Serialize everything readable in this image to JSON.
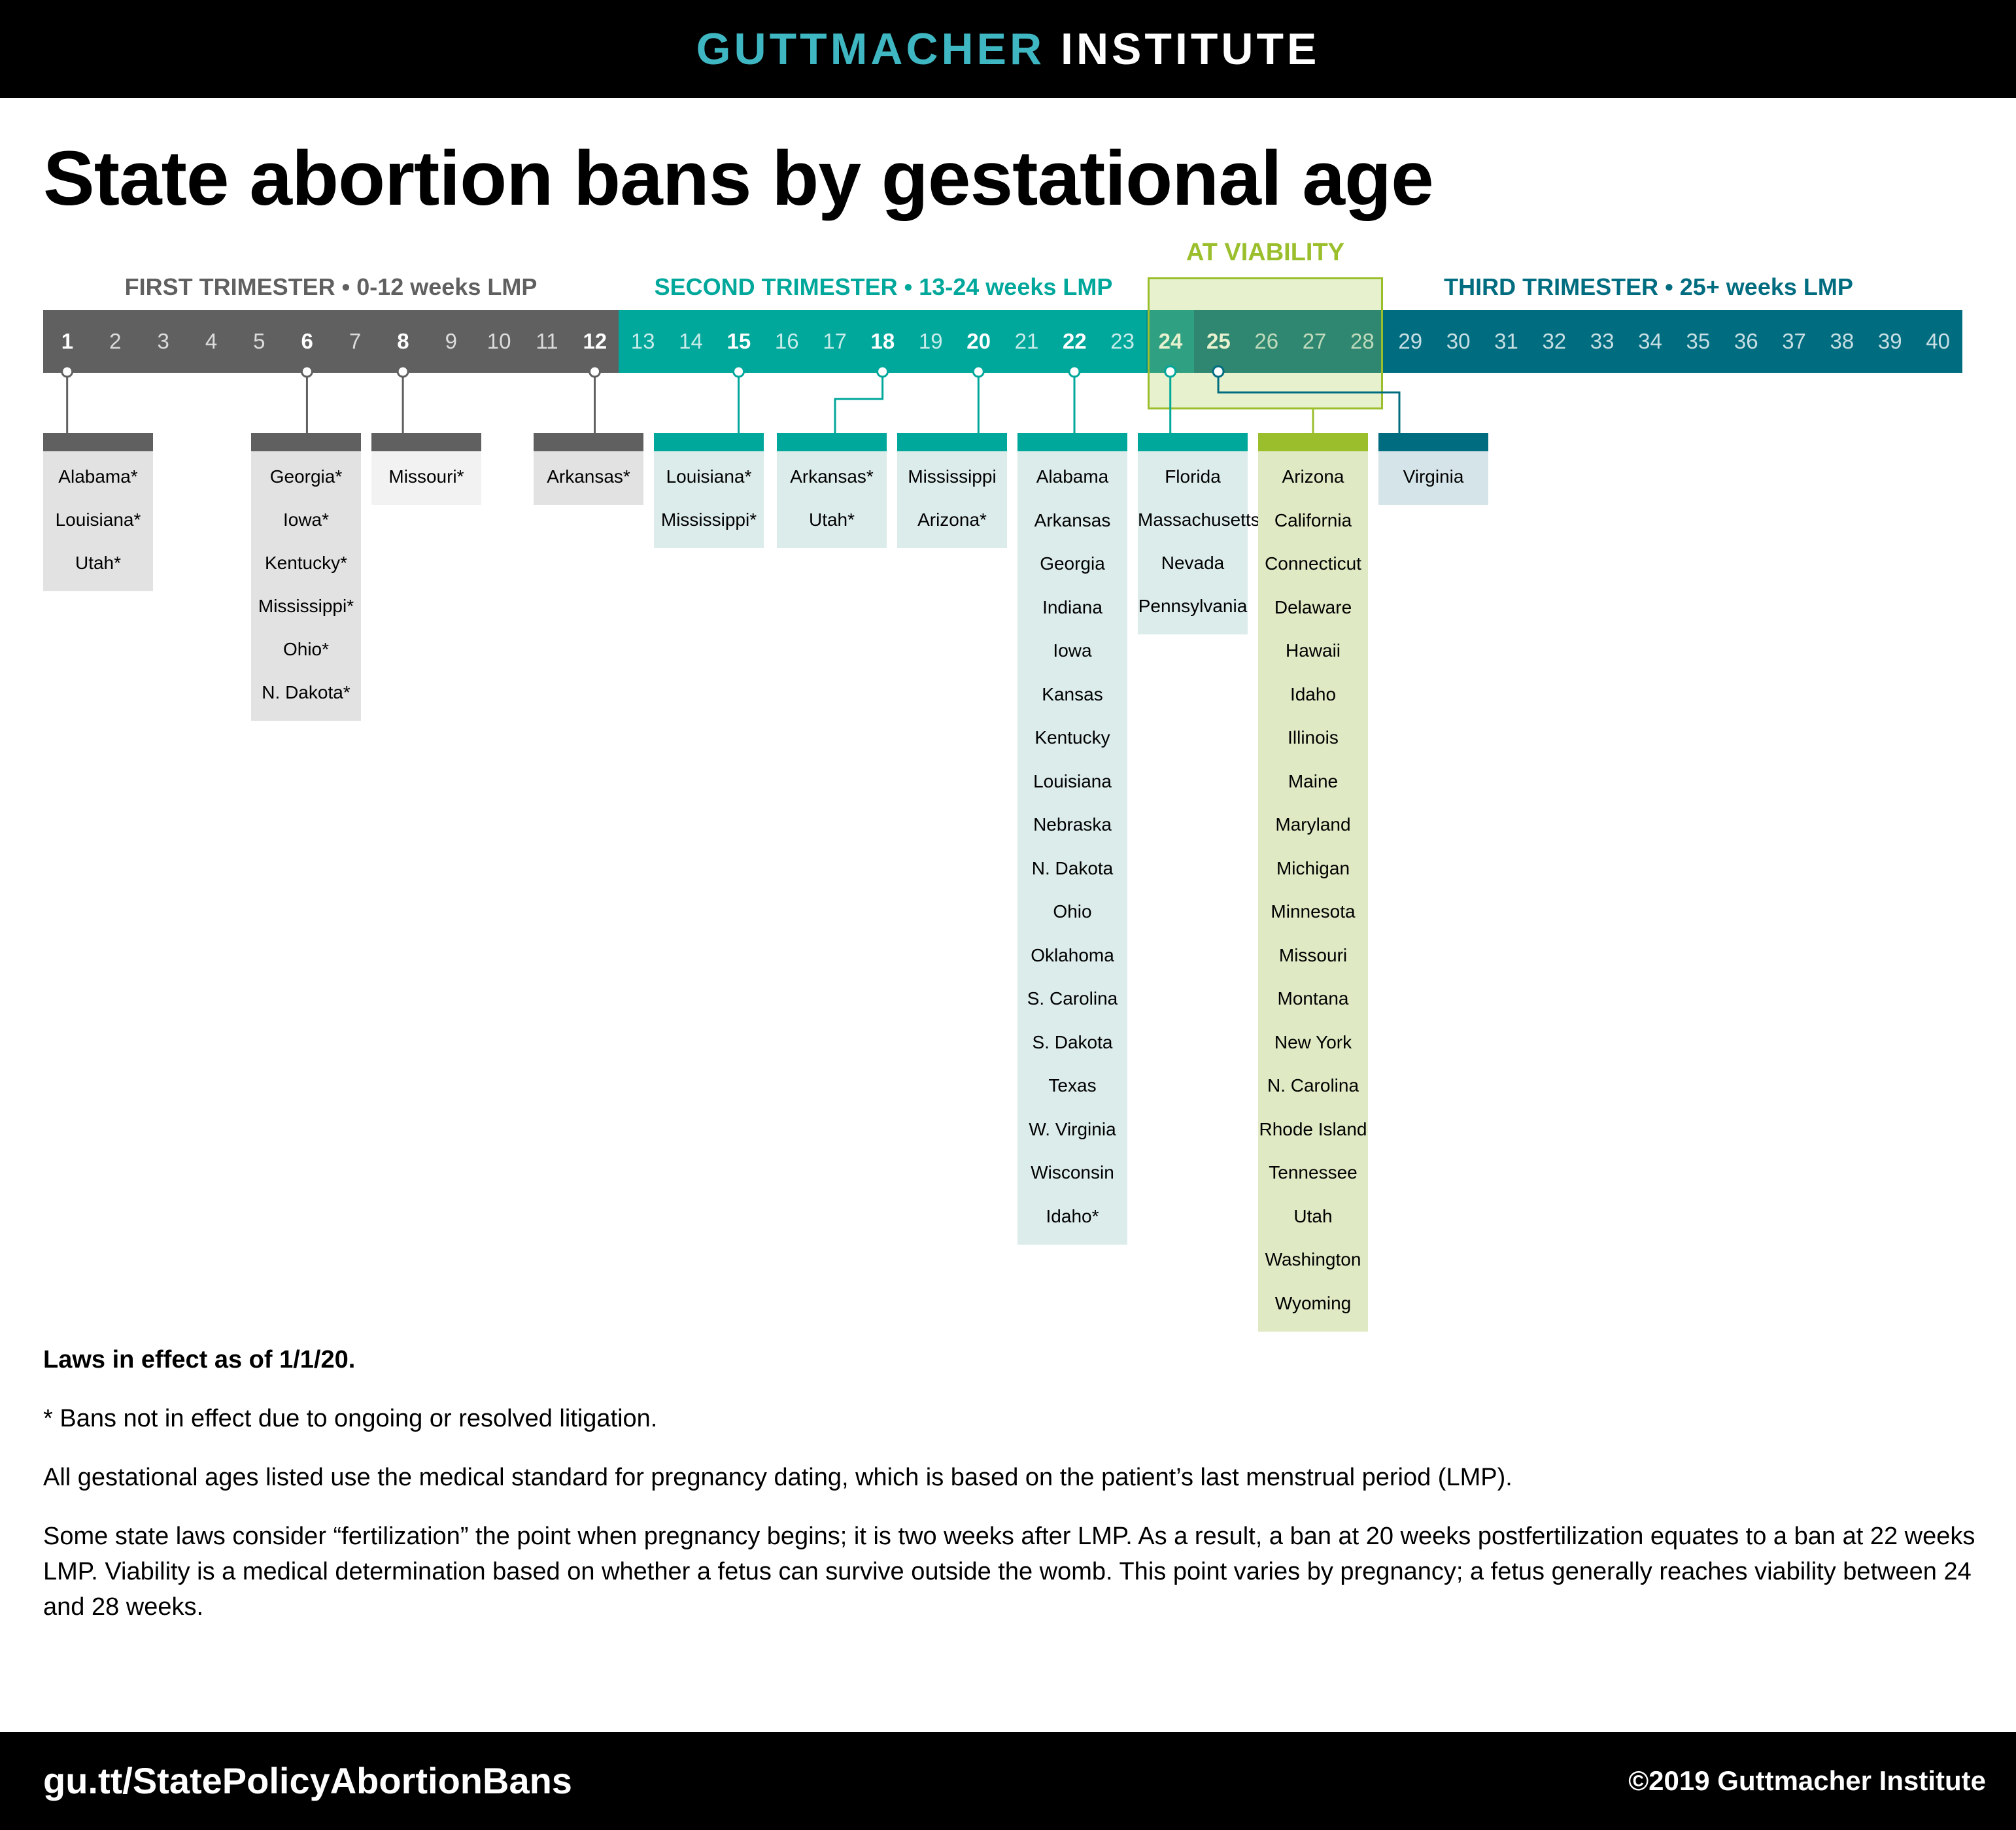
{
  "header": {
    "brand_primary": "GUTTMACHER",
    "brand_secondary": "INSTITUTE",
    "brand_color": "#3fb7c2"
  },
  "title": "State abortion bans by gestational age",
  "trimesters": [
    {
      "label": "FIRST TRIMESTER • 0-12 weeks LMP",
      "color": "#606060"
    },
    {
      "label": "SECOND TRIMESTER • 13-24 weeks LMP",
      "color": "#00a79b"
    },
    {
      "label": "THIRD TRIMESTER • 25+ weeks LMP",
      "color": "#006c80"
    }
  ],
  "viability_label": "AT VIABILITY",
  "colors": {
    "first": "#606060",
    "second": "#00a79b",
    "third": "#006c80",
    "viability": "#9bbf2c",
    "first_bg": "#e2e2e2",
    "first_bg_light": "#f2f2f2",
    "second_bg": "#dcecea",
    "third_bg": "#d4e4e8",
    "viability_bg": "#dfe9c3"
  },
  "weeks": [
    "1",
    "2",
    "3",
    "4",
    "5",
    "6",
    "7",
    "8",
    "9",
    "10",
    "11",
    "12",
    "13",
    "14",
    "15",
    "16",
    "17",
    "18",
    "19",
    "20",
    "21",
    "22",
    "23",
    "24",
    "25",
    "26",
    "27",
    "28",
    "29",
    "30",
    "31",
    "32",
    "33",
    "34",
    "35",
    "36",
    "37",
    "38",
    "39",
    "40"
  ],
  "highlighted_weeks": [
    "1",
    "6",
    "8",
    "12",
    "15",
    "18",
    "20",
    "22",
    "24",
    "25"
  ],
  "columns": [
    {
      "week": "1",
      "group": "first",
      "states": [
        "Alabama*",
        "Louisiana*",
        "Utah*"
      ]
    },
    {
      "week": "6",
      "group": "first",
      "states": [
        "Georgia*",
        "Iowa*",
        "Kentucky*",
        "Mississippi*",
        "Ohio*",
        "N. Dakota*"
      ]
    },
    {
      "week": "8",
      "group": "first_light",
      "states": [
        "Missouri*"
      ]
    },
    {
      "week": "12",
      "group": "first",
      "states": [
        "Arkansas*"
      ]
    },
    {
      "week": "15",
      "group": "second",
      "states": [
        "Louisiana*",
        "Mississippi*"
      ]
    },
    {
      "week": "18",
      "group": "second",
      "states": [
        "Arkansas*",
        "Utah*"
      ]
    },
    {
      "week": "20",
      "group": "second",
      "states": [
        "Mississippi",
        "Arizona*"
      ]
    },
    {
      "week": "22",
      "group": "second",
      "states": [
        "Alabama",
        "Arkansas",
        "Georgia",
        "Indiana",
        "Iowa",
        "Kansas",
        "Kentucky",
        "Louisiana",
        "Nebraska",
        "N. Dakota",
        "Ohio",
        "Oklahoma",
        "S. Carolina",
        "S. Dakota",
        "Texas",
        "W. Virginia",
        "Wisconsin",
        "Idaho*"
      ]
    },
    {
      "week": "24",
      "group": "second",
      "states": [
        "Florida",
        "Massachusetts",
        "Nevada",
        "Pennsylvania"
      ]
    },
    {
      "week": "viability",
      "group": "viability",
      "states": [
        "Arizona",
        "California",
        "Connecticut",
        "Delaware",
        "Hawaii",
        "Idaho",
        "Illinois",
        "Maine",
        "Maryland",
        "Michigan",
        "Minnesota",
        "Missouri",
        "Montana",
        "New York",
        "N. Carolina",
        "Rhode Island",
        "Tennessee",
        "Utah",
        "Washington",
        "Wyoming"
      ]
    },
    {
      "week": "25",
      "group": "third",
      "states": [
        "Virginia"
      ]
    }
  ],
  "notes": {
    "effective": "Laws in effect as of 1/1/20.",
    "asterisk": "* Bans not in effect due to ongoing or resolved litigation.",
    "lmp": "All gestational ages listed use the medical standard for pregnancy dating, which is based on the patient’s last menstrual period (LMP).",
    "fertilization": "Some state laws consider “fertilization” the point when pregnancy begins; it is two weeks after LMP. As a result, a ban at 20 weeks postfertilization equates to a ban at 22 weeks LMP. Viability is a medical determination based on whether a fetus can survive outside the womb. This point varies by pregnancy; a fetus generally reaches viability between 24 and 28 weeks."
  },
  "footer": {
    "url": "gu.tt/StatePolicyAbortionBans",
    "copyright": "©2019 Guttmacher Institute"
  }
}
